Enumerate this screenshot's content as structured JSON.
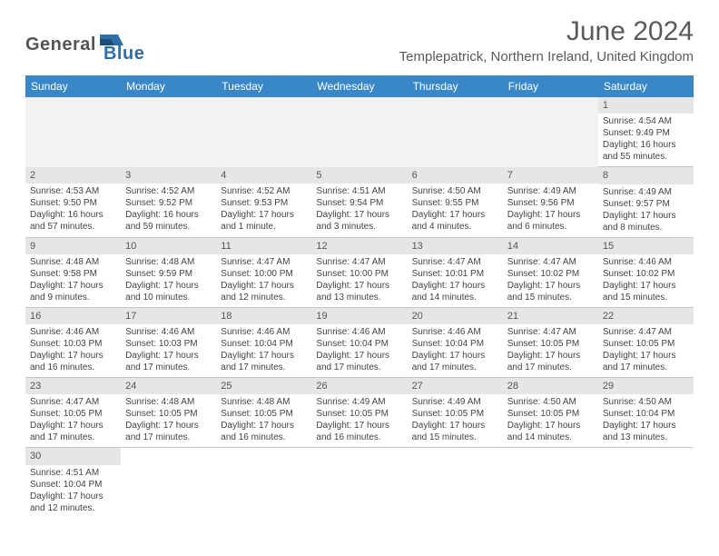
{
  "logo": {
    "text_dark": "General",
    "text_blue": "Blue"
  },
  "title": "June 2024",
  "location": "Templepatrick, Northern Ireland, United Kingdom",
  "colors": {
    "header_bg": "#3a87c8",
    "header_text": "#ffffff",
    "daynum_bg": "#e6e6e6",
    "border": "#c0c8d0",
    "text": "#444444",
    "title_text": "#5a5a5a",
    "logo_blue": "#2f6fa7"
  },
  "weekdays": [
    "Sunday",
    "Monday",
    "Tuesday",
    "Wednesday",
    "Thursday",
    "Friday",
    "Saturday"
  ],
  "weeks": [
    [
      null,
      null,
      null,
      null,
      null,
      null,
      {
        "n": "1",
        "sunrise": "4:54 AM",
        "sunset": "9:49 PM",
        "daylight": "16 hours and 55 minutes."
      }
    ],
    [
      {
        "n": "2",
        "sunrise": "4:53 AM",
        "sunset": "9:50 PM",
        "daylight": "16 hours and 57 minutes."
      },
      {
        "n": "3",
        "sunrise": "4:52 AM",
        "sunset": "9:52 PM",
        "daylight": "16 hours and 59 minutes."
      },
      {
        "n": "4",
        "sunrise": "4:52 AM",
        "sunset": "9:53 PM",
        "daylight": "17 hours and 1 minute."
      },
      {
        "n": "5",
        "sunrise": "4:51 AM",
        "sunset": "9:54 PM",
        "daylight": "17 hours and 3 minutes."
      },
      {
        "n": "6",
        "sunrise": "4:50 AM",
        "sunset": "9:55 PM",
        "daylight": "17 hours and 4 minutes."
      },
      {
        "n": "7",
        "sunrise": "4:49 AM",
        "sunset": "9:56 PM",
        "daylight": "17 hours and 6 minutes."
      },
      {
        "n": "8",
        "sunrise": "4:49 AM",
        "sunset": "9:57 PM",
        "daylight": "17 hours and 8 minutes."
      }
    ],
    [
      {
        "n": "9",
        "sunrise": "4:48 AM",
        "sunset": "9:58 PM",
        "daylight": "17 hours and 9 minutes."
      },
      {
        "n": "10",
        "sunrise": "4:48 AM",
        "sunset": "9:59 PM",
        "daylight": "17 hours and 10 minutes."
      },
      {
        "n": "11",
        "sunrise": "4:47 AM",
        "sunset": "10:00 PM",
        "daylight": "17 hours and 12 minutes."
      },
      {
        "n": "12",
        "sunrise": "4:47 AM",
        "sunset": "10:00 PM",
        "daylight": "17 hours and 13 minutes."
      },
      {
        "n": "13",
        "sunrise": "4:47 AM",
        "sunset": "10:01 PM",
        "daylight": "17 hours and 14 minutes."
      },
      {
        "n": "14",
        "sunrise": "4:47 AM",
        "sunset": "10:02 PM",
        "daylight": "17 hours and 15 minutes."
      },
      {
        "n": "15",
        "sunrise": "4:46 AM",
        "sunset": "10:02 PM",
        "daylight": "17 hours and 15 minutes."
      }
    ],
    [
      {
        "n": "16",
        "sunrise": "4:46 AM",
        "sunset": "10:03 PM",
        "daylight": "17 hours and 16 minutes."
      },
      {
        "n": "17",
        "sunrise": "4:46 AM",
        "sunset": "10:03 PM",
        "daylight": "17 hours and 17 minutes."
      },
      {
        "n": "18",
        "sunrise": "4:46 AM",
        "sunset": "10:04 PM",
        "daylight": "17 hours and 17 minutes."
      },
      {
        "n": "19",
        "sunrise": "4:46 AM",
        "sunset": "10:04 PM",
        "daylight": "17 hours and 17 minutes."
      },
      {
        "n": "20",
        "sunrise": "4:46 AM",
        "sunset": "10:04 PM",
        "daylight": "17 hours and 17 minutes."
      },
      {
        "n": "21",
        "sunrise": "4:47 AM",
        "sunset": "10:05 PM",
        "daylight": "17 hours and 17 minutes."
      },
      {
        "n": "22",
        "sunrise": "4:47 AM",
        "sunset": "10:05 PM",
        "daylight": "17 hours and 17 minutes."
      }
    ],
    [
      {
        "n": "23",
        "sunrise": "4:47 AM",
        "sunset": "10:05 PM",
        "daylight": "17 hours and 17 minutes."
      },
      {
        "n": "24",
        "sunrise": "4:48 AM",
        "sunset": "10:05 PM",
        "daylight": "17 hours and 17 minutes."
      },
      {
        "n": "25",
        "sunrise": "4:48 AM",
        "sunset": "10:05 PM",
        "daylight": "17 hours and 16 minutes."
      },
      {
        "n": "26",
        "sunrise": "4:49 AM",
        "sunset": "10:05 PM",
        "daylight": "17 hours and 16 minutes."
      },
      {
        "n": "27",
        "sunrise": "4:49 AM",
        "sunset": "10:05 PM",
        "daylight": "17 hours and 15 minutes."
      },
      {
        "n": "28",
        "sunrise": "4:50 AM",
        "sunset": "10:05 PM",
        "daylight": "17 hours and 14 minutes."
      },
      {
        "n": "29",
        "sunrise": "4:50 AM",
        "sunset": "10:04 PM",
        "daylight": "17 hours and 13 minutes."
      }
    ],
    [
      {
        "n": "30",
        "sunrise": "4:51 AM",
        "sunset": "10:04 PM",
        "daylight": "17 hours and 12 minutes."
      },
      null,
      null,
      null,
      null,
      null,
      null
    ]
  ],
  "labels": {
    "sunrise": "Sunrise: ",
    "sunset": "Sunset: ",
    "daylight": "Daylight: "
  }
}
